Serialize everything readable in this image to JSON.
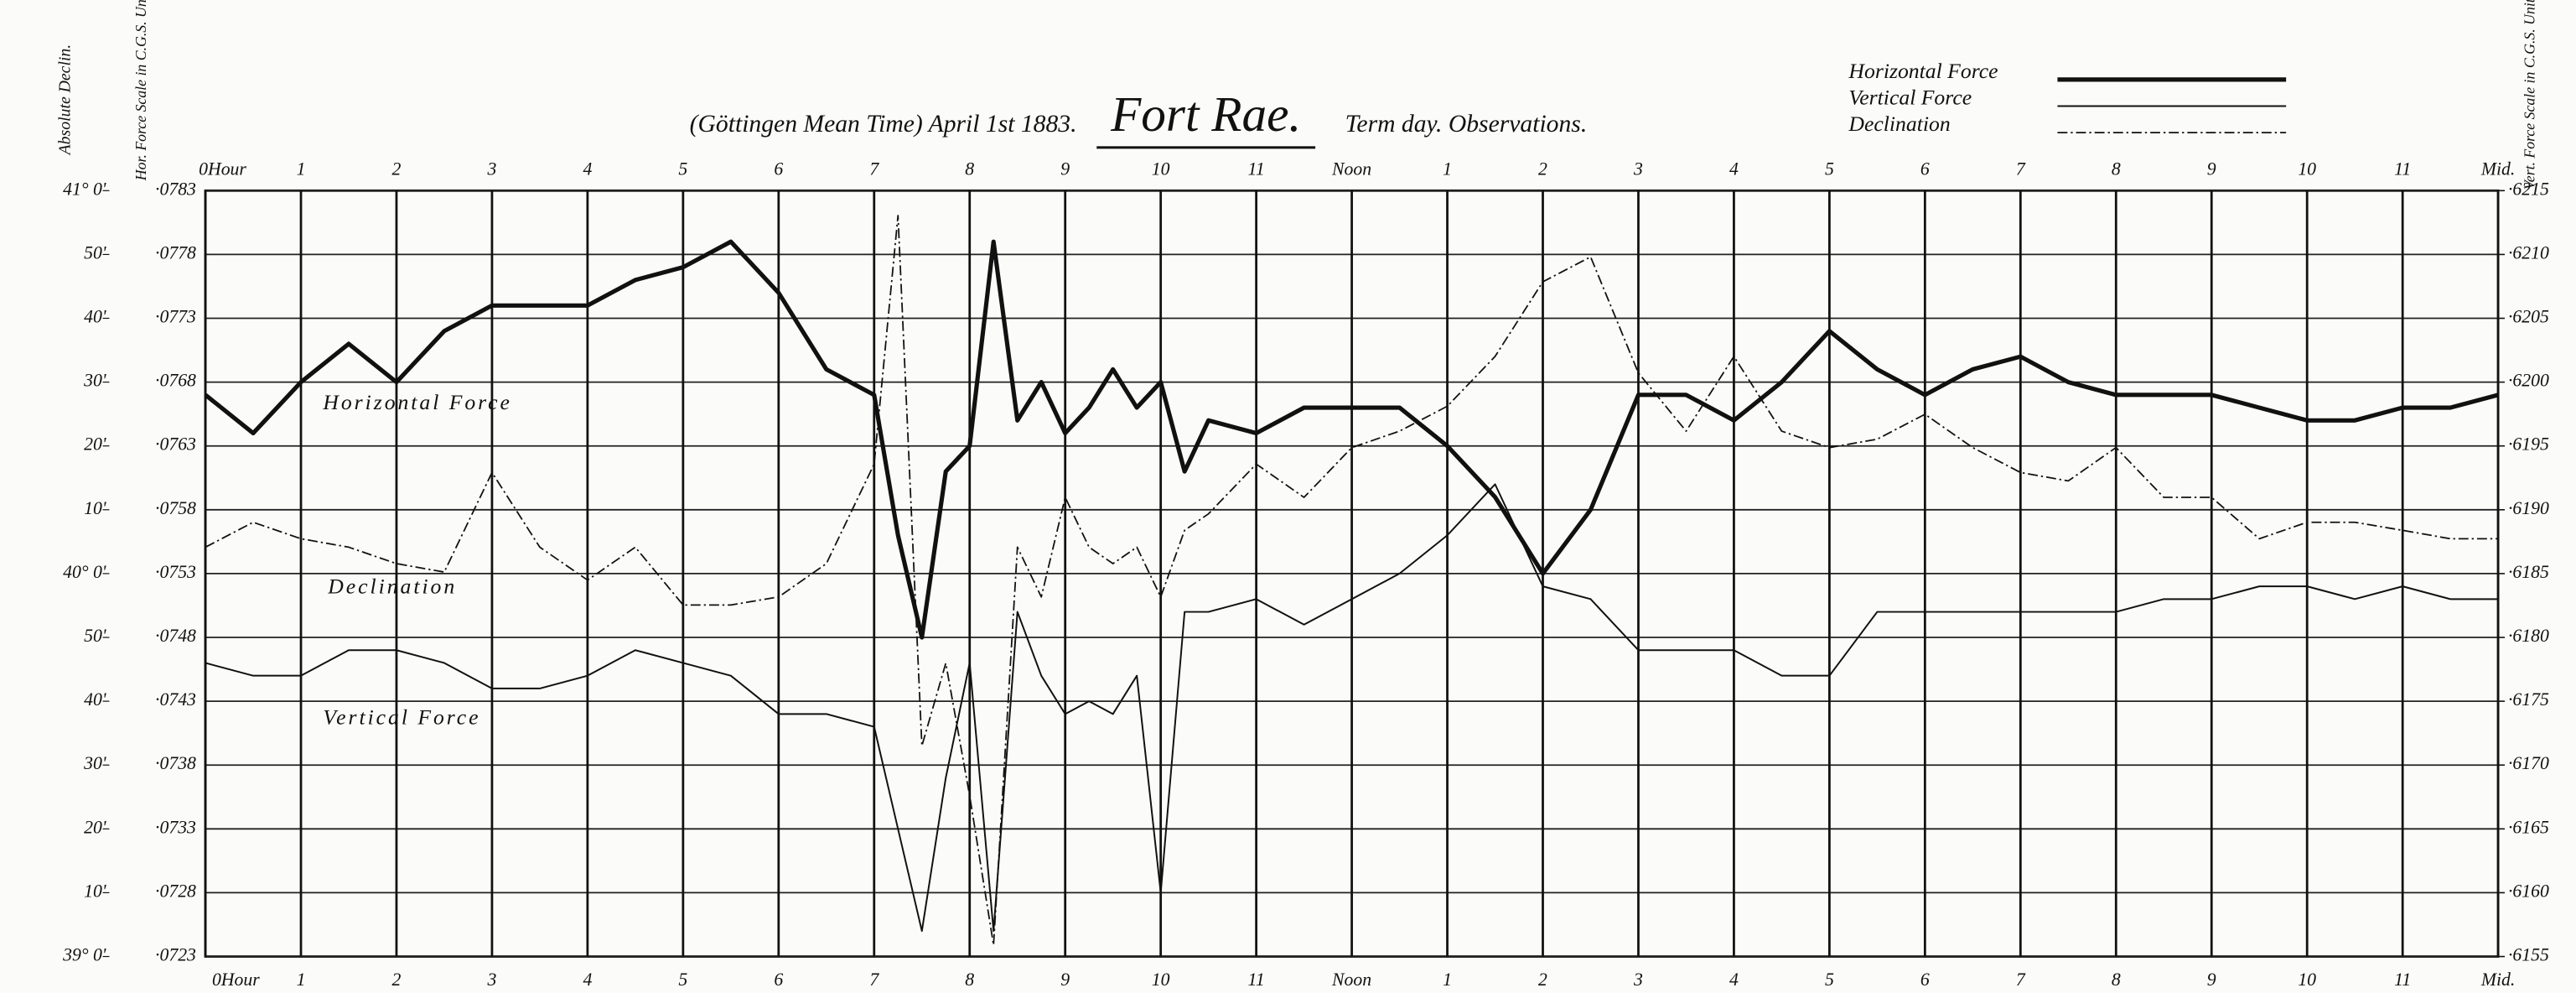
{
  "chart_data": {
    "type": "line",
    "header_left": "(Göttingen Mean Time)  April 1st 1883.",
    "title": "Fort Rae.",
    "header_right": "Term day.   Observations.",
    "y_label_declination": "Absolute Declin.",
    "ylabel": "Hor. Force Scale in C.G.S. Units",
    "y2label": "Vert. Force Scale in C.G.S. Units",
    "annotations": [
      "Horizontal Force",
      "Declination",
      "Vertical Force"
    ],
    "grid": true,
    "xlim": [
      0,
      24
    ],
    "xticks": [
      {
        "value": 0,
        "label": "0Hour"
      },
      1,
      2,
      3,
      4,
      5,
      6,
      7,
      8,
      9,
      10,
      11,
      {
        "value": 12,
        "label": "Noon"
      },
      {
        "value": 13,
        "label": "1"
      },
      {
        "value": 14,
        "label": "2"
      },
      {
        "value": 15,
        "label": "3"
      },
      {
        "value": 16,
        "label": "4"
      },
      {
        "value": 17,
        "label": "5"
      },
      {
        "value": 18,
        "label": "6"
      },
      {
        "value": 19,
        "label": "7"
      },
      {
        "value": 20,
        "label": "8"
      },
      {
        "value": 21,
        "label": "9"
      },
      {
        "value": 22,
        "label": "10"
      },
      {
        "value": 23,
        "label": "11"
      },
      {
        "value": 24,
        "label": "Mid."
      }
    ],
    "ylim": [
      0.0723,
      0.0783
    ],
    "yticks": [
      {
        "value": 0.0723,
        "label": "·0723"
      },
      {
        "value": 0.0728,
        "label": "·0728"
      },
      {
        "value": 0.0733,
        "label": "·0733"
      },
      {
        "value": 0.0738,
        "label": "·0738"
      },
      {
        "value": 0.0743,
        "label": "·0743"
      },
      {
        "value": 0.0748,
        "label": "·0748"
      },
      {
        "value": 0.0753,
        "label": "·0753"
      },
      {
        "value": 0.0758,
        "label": "·0758"
      },
      {
        "value": 0.0763,
        "label": "·0763"
      },
      {
        "value": 0.0768,
        "label": "·0768"
      },
      {
        "value": 0.0773,
        "label": "·0773"
      },
      {
        "value": 0.0778,
        "label": "·0778"
      },
      {
        "value": 0.0783,
        "label": "·0783"
      }
    ],
    "y2lim": [
      0.6155,
      0.6215
    ],
    "y2ticks": [
      {
        "value": 0.6155,
        "label": "·6155"
      },
      {
        "value": 0.616,
        "label": "·6160"
      },
      {
        "value": 0.6165,
        "label": "·6165"
      },
      {
        "value": 0.617,
        "label": "·6170"
      },
      {
        "value": 0.6175,
        "label": "·6175"
      },
      {
        "value": 0.618,
        "label": "·6180"
      },
      {
        "value": 0.6185,
        "label": "·6185"
      },
      {
        "value": 0.619,
        "label": "·6190"
      },
      {
        "value": 0.6195,
        "label": "·6195"
      },
      {
        "value": 0.62,
        "label": "·6200"
      },
      {
        "value": 0.6205,
        "label": "·6205"
      },
      {
        "value": 0.621,
        "label": "·6210"
      },
      {
        "value": 0.6215,
        "label": "·6215"
      }
    ],
    "dlim": [
      39,
      41
    ],
    "dticks": [
      {
        "value": 39,
        "label": "39° 0'"
      },
      {
        "value": 39.1667,
        "label": "10'"
      },
      {
        "value": 39.3333,
        "label": "20'"
      },
      {
        "value": 39.5,
        "label": "30'"
      },
      {
        "value": 39.6667,
        "label": "40'"
      },
      {
        "value": 39.8333,
        "label": "50'"
      },
      {
        "value": 40,
        "label": "40° 0'"
      },
      {
        "value": 40.1667,
        "label": "10'"
      },
      {
        "value": 40.3333,
        "label": "20'"
      },
      {
        "value": 40.5,
        "label": "30'"
      },
      {
        "value": 40.6667,
        "label": "40'"
      },
      {
        "value": 40.8333,
        "label": "50'"
      },
      {
        "value": 41,
        "label": "41° 0'"
      }
    ],
    "x": [
      0,
      0.5,
      1,
      1.5,
      2,
      2.5,
      3,
      3.5,
      4,
      4.5,
      5,
      5.5,
      6,
      6.5,
      7,
      7.25,
      7.5,
      7.75,
      8,
      8.25,
      8.5,
      8.75,
      9,
      9.25,
      9.5,
      9.75,
      10,
      10.25,
      10.5,
      11,
      11.5,
      12,
      12.5,
      13,
      13.5,
      14,
      14.5,
      15,
      15.5,
      16,
      16.5,
      17,
      17.5,
      18,
      18.5,
      19,
      19.5,
      20,
      20.5,
      21,
      21.5,
      22,
      22.5,
      23,
      23.5,
      24
    ],
    "series": [
      {
        "name": "Horizontal Force",
        "color": "#111",
        "linewidth": 2.6,
        "style": "solid",
        "axis": "y",
        "values": [
          0.0767,
          0.0764,
          0.0768,
          0.0771,
          0.0768,
          0.0772,
          0.0774,
          0.0774,
          0.0774,
          0.0776,
          0.0777,
          0.0779,
          0.0775,
          0.0769,
          0.0767,
          0.0756,
          0.0748,
          0.0761,
          0.0763,
          0.0779,
          0.0765,
          0.0768,
          0.0764,
          0.0766,
          0.0769,
          0.0766,
          0.0768,
          0.0761,
          0.0765,
          0.0764,
          0.0766,
          0.0766,
          0.0766,
          0.0763,
          0.0759,
          0.0753,
          0.0758,
          0.0767,
          0.0767,
          0.0765,
          0.0768,
          0.0772,
          0.0769,
          0.0767,
          0.0769,
          0.077,
          0.0768,
          0.0767,
          0.0767,
          0.0767,
          0.0766,
          0.0765,
          0.0765,
          0.0766,
          0.0766,
          0.0767
        ]
      },
      {
        "name": "Vertical Force",
        "color": "#111",
        "linewidth": 1,
        "style": "solid",
        "axis": "y2",
        "values": [
          0.6178,
          0.6177,
          0.6177,
          0.6179,
          0.6179,
          0.6178,
          0.6176,
          0.6176,
          0.6177,
          0.6179,
          0.6178,
          0.6177,
          0.6174,
          0.6174,
          0.6173,
          0.6165,
          0.6157,
          0.6169,
          0.6178,
          0.6157,
          0.6182,
          0.6177,
          0.6174,
          0.6175,
          0.6174,
          0.6177,
          0.616,
          0.6182,
          0.6182,
          0.6183,
          0.6181,
          0.6183,
          0.6185,
          0.6188,
          0.6192,
          0.6184,
          0.6183,
          0.6179,
          0.6179,
          0.6179,
          0.6177,
          0.6177,
          0.6182,
          0.6182,
          0.6182,
          0.6182,
          0.6182,
          0.6182,
          0.6183,
          0.6183,
          0.6184,
          0.6184,
          0.6183,
          0.6184,
          0.6183,
          0.6183
        ]
      },
      {
        "name": "Declination",
        "color": "#111",
        "linewidth": 0.9,
        "style": "dash-dot",
        "axis": "d",
        "values": [
          40.069,
          40.134,
          40.091,
          40.069,
          40.026,
          40.004,
          40.264,
          40.069,
          39.983,
          40.069,
          39.918,
          39.918,
          39.939,
          40.026,
          40.286,
          40.935,
          39.55,
          39.766,
          39.42,
          39.03,
          40.069,
          39.939,
          40.199,
          40.069,
          40.026,
          40.069,
          39.939,
          40.113,
          40.156,
          40.286,
          40.199,
          40.329,
          40.372,
          40.437,
          40.567,
          40.762,
          40.827,
          40.524,
          40.372,
          40.567,
          40.372,
          40.329,
          40.351,
          40.416,
          40.329,
          40.264,
          40.242,
          40.329,
          40.199,
          40.199,
          40.091,
          40.134,
          40.134,
          40.113,
          40.091,
          40.091
        ]
      }
    ]
  }
}
